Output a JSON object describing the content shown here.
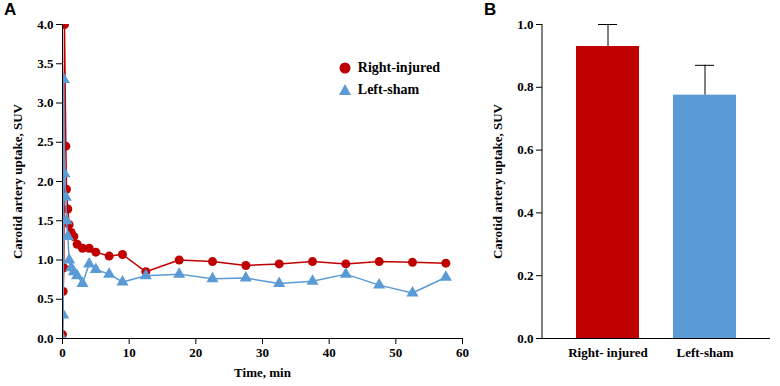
{
  "chart_data": [
    {
      "type": "line",
      "title": "A",
      "x_label": "Time, min",
      "y_label": "Carotid artery uptake, SUV",
      "x": [
        0,
        0.1,
        0.2,
        0.3,
        0.5,
        0.6,
        0.8,
        1,
        1.3,
        1.7,
        2.2,
        3,
        4,
        5,
        7,
        9,
        12.5,
        17.5,
        22.5,
        27.5,
        32.5,
        37.5,
        42.5,
        47.5,
        52.5,
        57.5
      ],
      "series": [
        {
          "name": "Right-injured",
          "color": "#c00000",
          "marker": "circle",
          "line_style": "solid",
          "values": [
            0.05,
            0.6,
            0.9,
            4.0,
            2.45,
            1.9,
            1.65,
            1.45,
            1.35,
            1.3,
            1.2,
            1.15,
            1.15,
            1.1,
            1.05,
            1.07,
            0.85,
            1.0,
            0.98,
            0.93,
            0.95,
            0.98,
            0.95,
            0.98,
            0.97,
            0.96
          ]
        },
        {
          "name": "Left-sham",
          "color": "#5b9bd5",
          "marker": "triangle",
          "line_style": "solid",
          "values": [
            0,
            0.3,
            3.3,
            2.1,
            1.8,
            1.5,
            1.3,
            1.0,
            0.9,
            0.85,
            0.8,
            0.7,
            0.95,
            0.88,
            0.82,
            0.72,
            0.8,
            0.82,
            0.76,
            0.77,
            0.7,
            0.73,
            0.82,
            0.68,
            0.58,
            0.78
          ]
        }
      ],
      "xlim": [
        0,
        60
      ],
      "xticks": [
        0,
        10,
        20,
        30,
        40,
        50,
        60
      ],
      "ylim": [
        0,
        4
      ],
      "yticks": [
        {
          "value": 0,
          "label": "0.0"
        },
        {
          "value": 0.5,
          "label": "0.5"
        },
        {
          "value": 1,
          "label": "1.0"
        },
        {
          "value": 1.5,
          "label": "1.5"
        },
        {
          "value": 2,
          "label": "2.0"
        },
        {
          "value": 2.5,
          "label": "2.5"
        },
        {
          "value": 3,
          "label": "3.0"
        },
        {
          "value": 3.5,
          "label": "3.5"
        },
        {
          "value": 4,
          "label": "4.0"
        }
      ],
      "legend": "top-right",
      "grid": false
    },
    {
      "type": "bar",
      "title": "B",
      "y_label": "Carotid artery uptake, SUV",
      "categories": [
        "Right- injured",
        "Left-sham"
      ],
      "values": [
        0.93,
        0.775
      ],
      "errors": [
        0.07,
        0.095
      ],
      "colors": [
        "#c00000",
        "#5b9bd5"
      ],
      "ylim": [
        0,
        1
      ],
      "yticks": [
        {
          "value": 0,
          "label": "0.0"
        },
        {
          "value": 0.2,
          "label": "0.2"
        },
        {
          "value": 0.4,
          "label": "0.4"
        },
        {
          "value": 0.6,
          "label": "0.6"
        },
        {
          "value": 0.8,
          "label": "0.8"
        },
        {
          "value": 1,
          "label": "1.0"
        }
      ],
      "grid": false
    }
  ]
}
